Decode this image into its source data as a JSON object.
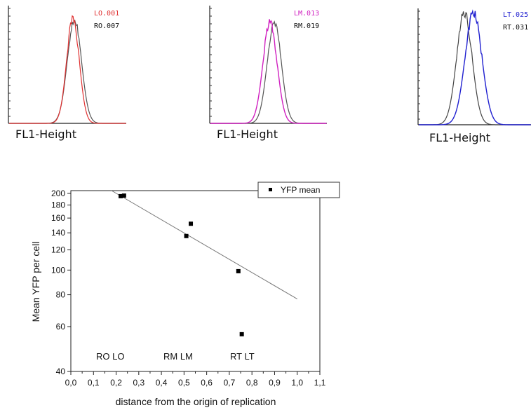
{
  "histograms": [
    {
      "x_label": "FL1-Height",
      "label1": "LO.001",
      "label1_color": "#e03030",
      "label2": "RO.007",
      "label2_color": "#111111"
    },
    {
      "x_label": "FL1-Height",
      "label1": "LM.013",
      "label1_color": "#d020c0",
      "label2": "RM.019",
      "label2_color": "#111111"
    },
    {
      "x_label": "FL1-Height",
      "label1": "LT.025",
      "label1_color": "#2020d0",
      "label2": "RT.031",
      "label2_color": "#111111"
    }
  ],
  "chart_data": {
    "type": "scatter",
    "xlabel": "distance from the origin of replication",
    "ylabel": "Mean YFP per cell",
    "xlim": [
      0.0,
      1.1
    ],
    "ylim": [
      40,
      205
    ],
    "y_scale": "log",
    "x_ticks": [
      "0,0",
      "0,1",
      "0,2",
      "0,3",
      "0,4",
      "0,5",
      "0,6",
      "0,7",
      "0,8",
      "0,9",
      "1,0",
      "1,1"
    ],
    "y_ticks": [
      40,
      60,
      80,
      100,
      120,
      140,
      160,
      180,
      200
    ],
    "legend": {
      "label": "YFP mean",
      "placement": "top-right"
    },
    "series": [
      {
        "name": "YFP mean",
        "points": [
          [
            0.22,
            195
          ],
          [
            0.235,
            196
          ],
          [
            0.51,
            136
          ],
          [
            0.53,
            152
          ],
          [
            0.74,
            99
          ],
          [
            0.755,
            56
          ]
        ]
      }
    ],
    "fit_line": {
      "x": [
        0.18,
        1.0
      ],
      "y": [
        205,
        77
      ]
    },
    "annotations": [
      "RO LO",
      "RM  LM",
      "RT  LT"
    ]
  }
}
